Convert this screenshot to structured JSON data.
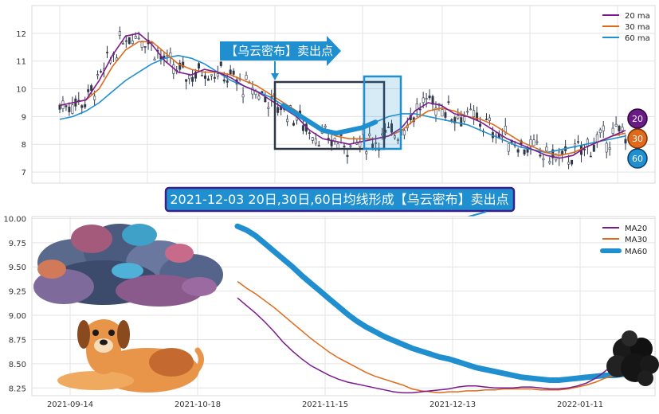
{
  "chart_data": [
    {
      "type": "line",
      "subtype": "candlestick-with-moving-averages",
      "y_ticks": [
        "7",
        "8",
        "9",
        "10",
        "11",
        "12"
      ],
      "ylim": [
        6.6,
        13.0
      ],
      "grid": true,
      "legend_position": "top-right",
      "series": [
        {
          "name": "20 ma",
          "color": "#7b1a8f"
        },
        {
          "name": "30 ma",
          "color": "#e06a1b"
        },
        {
          "name": "60 ma",
          "color": "#1f8fd0"
        }
      ],
      "ma20_values": [
        9.4,
        9.5,
        9.6,
        10.3,
        11.2,
        11.9,
        12.0,
        11.6,
        11.0,
        10.6,
        10.5,
        10.7,
        10.6,
        10.4,
        10.1,
        9.9,
        9.6,
        9.3,
        9.0,
        8.5,
        8.2,
        8.1,
        8.0,
        8.1,
        8.2,
        8.3,
        8.6,
        9.2,
        9.5,
        9.4,
        9.1,
        9.0,
        8.8,
        8.5,
        8.2,
        8.0,
        7.8,
        7.6,
        7.5,
        7.6,
        7.9,
        8.1,
        8.3,
        8.5
      ],
      "ma30_values": [
        9.4,
        9.5,
        9.6,
        10.0,
        10.8,
        11.4,
        11.7,
        11.7,
        11.3,
        10.9,
        10.7,
        10.6,
        10.6,
        10.5,
        10.3,
        10.1,
        9.8,
        9.5,
        9.2,
        8.8,
        8.5,
        8.3,
        8.2,
        8.2,
        8.2,
        8.3,
        8.5,
        8.9,
        9.2,
        9.3,
        9.2,
        9.0,
        8.9,
        8.7,
        8.4,
        8.1,
        7.9,
        7.7,
        7.6,
        7.7,
        7.9,
        8.1,
        8.3,
        8.4
      ],
      "ma60_values": [
        8.9,
        9.0,
        9.2,
        9.5,
        9.9,
        10.3,
        10.6,
        10.9,
        11.1,
        11.2,
        11.1,
        10.9,
        10.6,
        10.3,
        10.1,
        9.9,
        9.7,
        9.4,
        9.1,
        8.8,
        8.5,
        8.4,
        8.5,
        8.6,
        8.8,
        9.0,
        9.1,
        9.1,
        9.0,
        8.9,
        8.8,
        8.7,
        8.5,
        8.3,
        8.1,
        7.9,
        7.8,
        7.7,
        7.8,
        7.9,
        8.0,
        8.1,
        8.2,
        8.3
      ]
    },
    {
      "type": "line",
      "x_ticks": [
        "2021-09-14",
        "2021-10-18",
        "2021-11-15",
        "2021-12-13",
        "2022-01-11"
      ],
      "y_ticks": [
        "8.25",
        "8.50",
        "8.75",
        "9.00",
        "9.25",
        "9.50",
        "9.75",
        "10.00"
      ],
      "ylim": [
        8.17,
        10.02
      ],
      "grid": true,
      "legend_position": "top-right",
      "series": [
        {
          "name": "MA20",
          "color": "#7b1a8f",
          "values": [
            9.18,
            9.1,
            9.02,
            8.93,
            8.83,
            8.72,
            8.63,
            8.55,
            8.48,
            8.43,
            8.38,
            8.34,
            8.31,
            8.29,
            8.27,
            8.25,
            8.23,
            8.21,
            8.2,
            8.2,
            8.21,
            8.22,
            8.23,
            8.24,
            8.26,
            8.27,
            8.27,
            8.26,
            8.25,
            8.25,
            8.25,
            8.26,
            8.26,
            8.25,
            8.24,
            8.24,
            8.25,
            8.27,
            8.3,
            8.35,
            8.42,
            8.5,
            8.56
          ]
        },
        {
          "name": "MA30",
          "color": "#e06a1b",
          "values": [
            9.35,
            9.28,
            9.22,
            9.15,
            9.08,
            9.0,
            8.92,
            8.84,
            8.76,
            8.69,
            8.62,
            8.56,
            8.51,
            8.46,
            8.41,
            8.37,
            8.34,
            8.31,
            8.28,
            8.24,
            8.22,
            8.21,
            8.2,
            8.21,
            8.21,
            8.22,
            8.22,
            8.23,
            8.23,
            8.24,
            8.24,
            8.24,
            8.24,
            8.23,
            8.23,
            8.23,
            8.24,
            8.26,
            8.28,
            8.31,
            8.35,
            8.38,
            8.4
          ]
        },
        {
          "name": "MA60",
          "color": "#1f8fd0",
          "values": [
            9.92,
            9.88,
            9.82,
            9.74,
            9.66,
            9.58,
            9.5,
            9.41,
            9.33,
            9.25,
            9.17,
            9.09,
            9.01,
            8.94,
            8.88,
            8.83,
            8.78,
            8.74,
            8.7,
            8.66,
            8.63,
            8.6,
            8.57,
            8.55,
            8.52,
            8.49,
            8.46,
            8.44,
            8.42,
            8.4,
            8.38,
            8.36,
            8.35,
            8.34,
            8.33,
            8.33,
            8.34,
            8.35,
            8.36,
            8.37,
            8.38,
            8.38,
            8.39
          ]
        }
      ]
    }
  ],
  "annotations": {
    "callout": "【乌云密布】卖出点",
    "banner": "2021-12-03 20日,30日,60日均线形成【乌云密布】卖出点",
    "badges": [
      "20",
      "30",
      "60"
    ]
  },
  "colors": {
    "ma20": "#7b1a8f",
    "ma30": "#e06a1b",
    "ma60": "#1f8fd0",
    "candle": "#2f3848",
    "callout_bg": "#1f8fd0",
    "banner_bg": "#1f8fd0",
    "banner_border": "#3a1f8a"
  },
  "illustrations": [
    "storm-cloud-icon",
    "dog-icon",
    "dark-cloud-icon"
  ]
}
